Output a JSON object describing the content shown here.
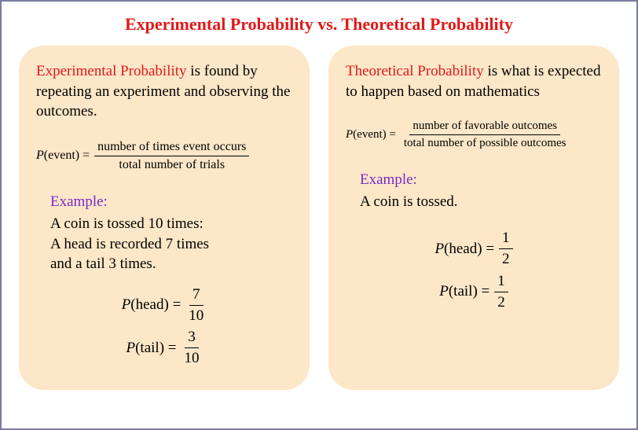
{
  "title": {
    "text": "Experimental Probability vs. Theoretical Probability",
    "color": "#e31818"
  },
  "card_bg": "#fce7c8",
  "left": {
    "term": "Experimental Probability",
    "term_color": "#e31818",
    "definition_rest": " is found by repeating an experiment and observing the outcomes.",
    "formula_lhs": "P(event) =",
    "formula_num": "number of times event occurs",
    "formula_den": "total number of trials",
    "example_label": "Example:",
    "example_color": "#7a29c7",
    "example_body_lines": [
      "A coin is tossed 10 times:",
      "A head is recorded 7 times",
      "and a tail 3 times."
    ],
    "results": [
      {
        "lhs": "P(head) =",
        "num": "7",
        "den": "10"
      },
      {
        "lhs": "P(tail) =",
        "num": "3",
        "den": "10"
      }
    ]
  },
  "right": {
    "term": "Theoretical Probability",
    "term_color": "#e31818",
    "definition_rest": " is what is expected to happen based on mathematics",
    "formula_lhs": "P(event) =",
    "formula_num": "number of favorable outcomes",
    "formula_den": "total number of possible outcomes",
    "example_label": "Example:",
    "example_color": "#7a29c7",
    "example_body_lines": [
      "A coin is tossed."
    ],
    "results": [
      {
        "lhs": "P(head) =",
        "num": "1",
        "den": "2"
      },
      {
        "lhs": "P(tail) =",
        "num": "1",
        "den": "2"
      }
    ]
  }
}
